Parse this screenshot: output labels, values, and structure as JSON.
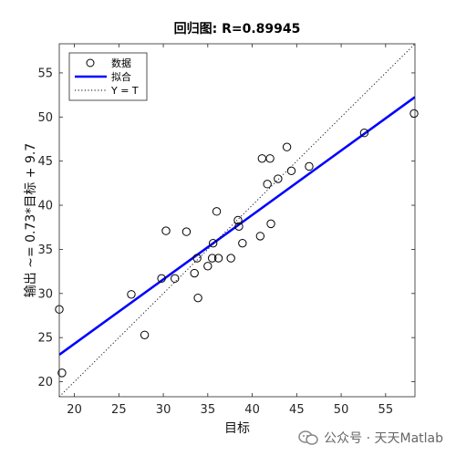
{
  "chart_data": {
    "type": "scatter",
    "title": "回归图: R=0.89945",
    "xlabel": "目标",
    "ylabel": "输出 ~= 0.73*目标 + 9.7",
    "xlim": [
      18.3,
      58.3
    ],
    "ylim": [
      18.3,
      58.3
    ],
    "xticks": [
      20,
      25,
      30,
      35,
      40,
      45,
      50,
      55
    ],
    "yticks": [
      20,
      25,
      30,
      35,
      40,
      45,
      50,
      55
    ],
    "grid": false,
    "legend_position": "top-left",
    "series": [
      {
        "name": "数据",
        "kind": "marker",
        "points": [
          [
            18.3,
            28.2
          ],
          [
            18.6,
            21.0
          ],
          [
            26.4,
            29.9
          ],
          [
            27.9,
            25.3
          ],
          [
            29.8,
            31.7
          ],
          [
            30.3,
            37.1
          ],
          [
            31.3,
            31.7
          ],
          [
            32.6,
            37.0
          ],
          [
            33.5,
            32.3
          ],
          [
            33.8,
            34.0
          ],
          [
            33.9,
            29.5
          ],
          [
            35.0,
            33.1
          ],
          [
            35.5,
            34.0
          ],
          [
            35.6,
            35.7
          ],
          [
            36.0,
            39.3
          ],
          [
            36.2,
            34.0
          ],
          [
            37.6,
            34.0
          ],
          [
            38.4,
            38.3
          ],
          [
            38.5,
            37.6
          ],
          [
            38.9,
            35.7
          ],
          [
            40.9,
            36.5
          ],
          [
            41.1,
            45.3
          ],
          [
            41.7,
            42.4
          ],
          [
            42.0,
            45.3
          ],
          [
            42.1,
            37.9
          ],
          [
            42.9,
            43.0
          ],
          [
            43.9,
            46.6
          ],
          [
            44.4,
            43.9
          ],
          [
            46.4,
            44.4
          ],
          [
            52.6,
            48.2
          ],
          [
            58.2,
            50.4
          ]
        ]
      },
      {
        "name": "拟合",
        "kind": "line",
        "slope": 0.73,
        "intercept": 9.7,
        "color": "#0000ff"
      },
      {
        "name": "Y = T",
        "kind": "line",
        "slope": 1,
        "intercept": 0,
        "color": "#000000",
        "style": "dotted"
      }
    ]
  },
  "watermark": {
    "text": "公众号 · 天天Matlab"
  }
}
